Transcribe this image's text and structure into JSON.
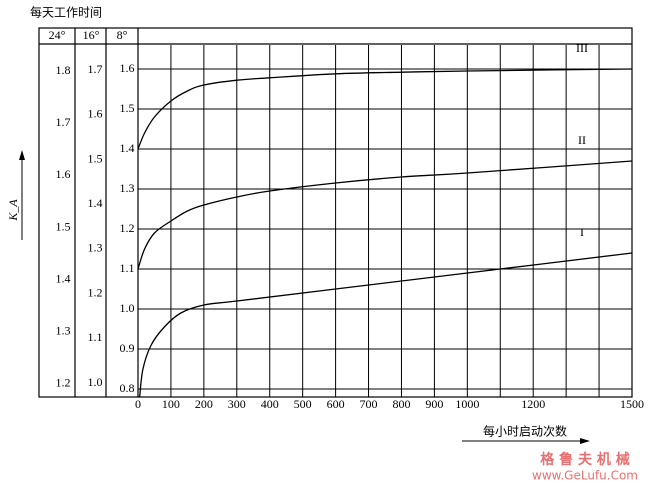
{
  "chart_data": {
    "type": "line",
    "title": "每天工作时间",
    "x_label": "每小时启动次数",
    "y_label": "K_A",
    "xlim": [
      0,
      1500
    ],
    "xticks": [
      0,
      100,
      200,
      300,
      400,
      500,
      600,
      700,
      800,
      900,
      1000,
      1200,
      1500
    ],
    "xgrid": [
      100,
      200,
      300,
      400,
      500,
      600,
      700,
      800,
      900,
      1000,
      1100,
      1200,
      1300,
      1400
    ],
    "ylim": [
      0.78,
      1.66
    ],
    "yticks": [
      0.8,
      {
        "value": 0.9,
        "label": "0.9"
      },
      {
        "value": 1.0,
        "label": "1.0"
      },
      1.1,
      1.2,
      1.3,
      1.4,
      1.5,
      1.6
    ],
    "grid": true,
    "axes": [
      {
        "header": "24°",
        "ylim": [
          1.175,
          1.85
        ],
        "yticks": [
          1.2,
          1.3,
          1.4,
          1.5,
          1.6,
          1.7,
          1.8
        ]
      },
      {
        "header": "16°",
        "ylim": [
          0.969,
          1.756
        ],
        "yticks": [
          {
            "value": 1.0,
            "label": "1.0"
          },
          1.1,
          1.2,
          1.3,
          1.4,
          1.5,
          1.6,
          1.7
        ]
      },
      {
        "header": "8°"
      }
    ],
    "series": [
      {
        "name": "III",
        "color": "#000000",
        "x": [
          0,
          20,
          50,
          100,
          150,
          200,
          300,
          400,
          600,
          800,
          1000,
          1500
        ],
        "values": [
          1.4,
          1.44,
          1.48,
          1.52,
          1.545,
          1.56,
          1.572,
          1.578,
          1.588,
          1.592,
          1.595,
          1.6
        ]
      },
      {
        "name": "II",
        "color": "#000000",
        "x": [
          0,
          20,
          50,
          100,
          150,
          200,
          300,
          400,
          600,
          800,
          1000,
          1500
        ],
        "values": [
          1.1,
          1.15,
          1.19,
          1.22,
          1.245,
          1.26,
          1.28,
          1.295,
          1.315,
          1.33,
          1.34,
          1.37
        ]
      },
      {
        "name": "I",
        "color": "#000000",
        "x": [
          5,
          15,
          40,
          80,
          130,
          200,
          300,
          600,
          1000,
          1500
        ],
        "values": [
          0.78,
          0.85,
          0.91,
          0.955,
          0.99,
          1.01,
          1.02,
          1.05,
          1.09,
          1.14
        ]
      }
    ]
  },
  "watermark": {
    "brand": "格 鲁 夫 机 械",
    "url": "www.GeLufu.Com"
  }
}
